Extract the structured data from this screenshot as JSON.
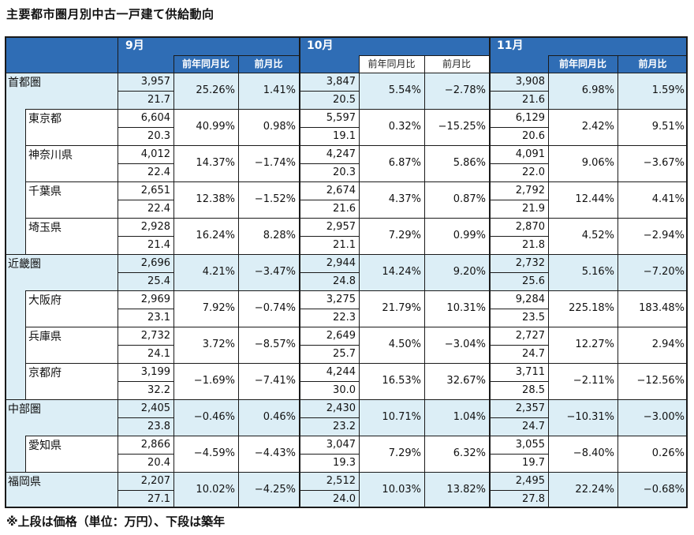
{
  "title": "主要都市圏月別中古一戸建て供給動向",
  "note": "※上段は価格（単位：万円）、下段は築年",
  "months": [
    "9月",
    "10月",
    "11月"
  ],
  "subheaders": [
    "前年同月比",
    "前月比"
  ],
  "rows": [
    {
      "name": "首都圏",
      "level": 0,
      "data": [
        [
          "3,957",
          "21.7",
          "25.26%",
          "1.41%"
        ],
        [
          "3,847",
          "20.5",
          "5.54%",
          "−2.78%"
        ],
        [
          "3,908",
          "21.6",
          "6.98%",
          "1.59%"
        ]
      ]
    },
    {
      "name": "東京都",
      "level": 1,
      "data": [
        [
          "6,604",
          "20.3",
          "40.99%",
          "0.98%"
        ],
        [
          "5,597",
          "19.1",
          "0.32%",
          "−15.25%"
        ],
        [
          "6,129",
          "20.6",
          "2.42%",
          "9.51%"
        ]
      ]
    },
    {
      "name": "神奈川県",
      "level": 1,
      "data": [
        [
          "4,012",
          "22.4",
          "14.37%",
          "−1.74%"
        ],
        [
          "4,247",
          "20.3",
          "6.87%",
          "5.86%"
        ],
        [
          "4,091",
          "22.0",
          "9.06%",
          "−3.67%"
        ]
      ]
    },
    {
      "name": "千葉県",
      "level": 1,
      "data": [
        [
          "2,651",
          "22.4",
          "12.38%",
          "−1.52%"
        ],
        [
          "2,674",
          "21.6",
          "4.37%",
          "0.87%"
        ],
        [
          "2,792",
          "21.9",
          "12.44%",
          "4.41%"
        ]
      ]
    },
    {
      "name": "埼玉県",
      "level": 1,
      "data": [
        [
          "2,928",
          "21.4",
          "16.24%",
          "8.28%"
        ],
        [
          "2,957",
          "21.1",
          "7.29%",
          "0.99%"
        ],
        [
          "2,870",
          "21.8",
          "4.52%",
          "−2.94%"
        ]
      ]
    },
    {
      "name": "近畿圏",
      "level": 0,
      "data": [
        [
          "2,696",
          "25.4",
          "4.21%",
          "−3.47%"
        ],
        [
          "2,944",
          "24.8",
          "14.24%",
          "9.20%"
        ],
        [
          "2,732",
          "25.6",
          "5.16%",
          "−7.20%"
        ]
      ]
    },
    {
      "name": "大阪府",
      "level": 1,
      "data": [
        [
          "2,969",
          "23.1",
          "7.92%",
          "−0.74%"
        ],
        [
          "3,275",
          "22.3",
          "21.79%",
          "10.31%"
        ],
        [
          "9,284",
          "23.5",
          "225.18%",
          "183.48%"
        ]
      ]
    },
    {
      "name": "兵庫県",
      "level": 1,
      "data": [
        [
          "2,732",
          "24.1",
          "3.72%",
          "−8.57%"
        ],
        [
          "2,649",
          "25.7",
          "4.50%",
          "−3.04%"
        ],
        [
          "2,727",
          "24.7",
          "12.27%",
          "2.94%"
        ]
      ]
    },
    {
      "name": "京都府",
      "level": 1,
      "data": [
        [
          "3,199",
          "32.2",
          "−1.69%",
          "−7.41%"
        ],
        [
          "4,244",
          "30.0",
          "16.53%",
          "32.67%"
        ],
        [
          "3,711",
          "28.5",
          "−2.11%",
          "−12.56%"
        ]
      ]
    },
    {
      "name": "中部圏",
      "level": 0,
      "data": [
        [
          "2,405",
          "23.8",
          "−0.46%",
          "0.46%"
        ],
        [
          "2,430",
          "23.2",
          "10.71%",
          "1.04%"
        ],
        [
          "2,357",
          "24.7",
          "−10.31%",
          "−3.00%"
        ]
      ]
    },
    {
      "name": "愛知県",
      "level": 1,
      "data": [
        [
          "2,866",
          "20.4",
          "−4.59%",
          "−4.43%"
        ],
        [
          "3,047",
          "19.3",
          "7.29%",
          "6.32%"
        ],
        [
          "3,055",
          "19.7",
          "−8.40%",
          "0.26%"
        ]
      ]
    },
    {
      "name": "福岡県",
      "level": 0,
      "data": [
        [
          "2,207",
          "27.1",
          "10.02%",
          "−4.25%"
        ],
        [
          "2,512",
          "24.0",
          "10.03%",
          "13.82%"
        ],
        [
          "2,495",
          "27.8",
          "22.24%",
          "−0.68%"
        ]
      ]
    }
  ]
}
